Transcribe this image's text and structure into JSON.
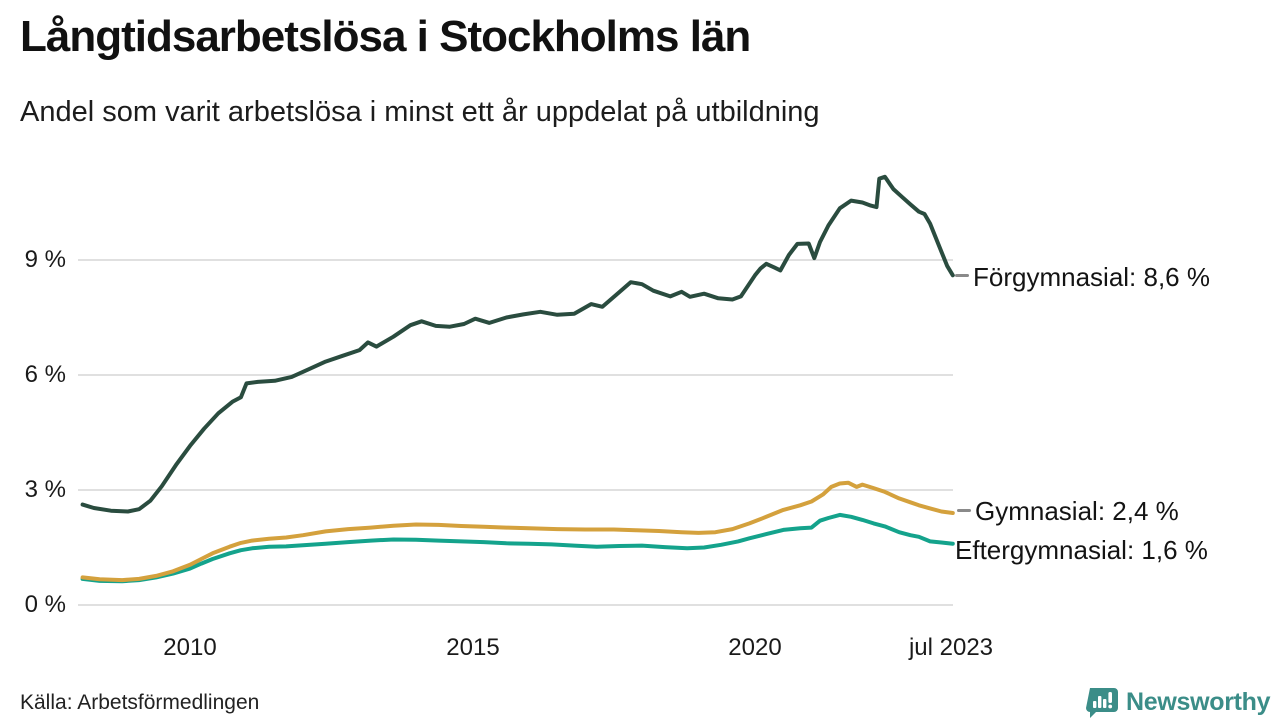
{
  "title": "Långtidsarbetslösa i Stockholms län",
  "subtitle": "Andel som varit arbetslösa i minst ett år uppdelat på utbildning",
  "source": "Källa: Arbetsförmedlingen",
  "brand": {
    "name": "Newsworthy",
    "color": "#3b8d88"
  },
  "colors": {
    "grid": "#e0e0e0",
    "text": "#151515"
  },
  "chart_data": {
    "type": "line",
    "title": "Långtidsarbetslösa i Stockholms län",
    "subtitle": "Andel som varit arbetslösa i minst ett år uppdelat på utbildning",
    "unit": "%",
    "x_axis": {
      "range_years": [
        2008.1,
        2023.5
      ],
      "ticks": [
        2010,
        2015,
        2020,
        2023.5
      ],
      "tick_labels": [
        "2010",
        "2015",
        "2020",
        "jul 2023"
      ]
    },
    "y_axis": {
      "range": [
        0,
        11.8
      ],
      "ticks": [
        0,
        3,
        6,
        9
      ],
      "tick_labels": [
        "0 %",
        "3 %",
        "6 %",
        "9 %"
      ],
      "grid": true
    },
    "legend_position": "right-end-labels",
    "series": [
      {
        "name": "Eftergymnasial",
        "color": "#14a38c",
        "end_value": 1.6,
        "end_label": "Eftergymnasial: 1,6 %",
        "points": [
          [
            2008.1,
            0.68
          ],
          [
            2008.4,
            0.63
          ],
          [
            2008.8,
            0.62
          ],
          [
            2009.1,
            0.65
          ],
          [
            2009.4,
            0.72
          ],
          [
            2009.7,
            0.82
          ],
          [
            2010.0,
            0.95
          ],
          [
            2010.2,
            1.08
          ],
          [
            2010.4,
            1.2
          ],
          [
            2010.7,
            1.35
          ],
          [
            2010.9,
            1.43
          ],
          [
            2011.1,
            1.48
          ],
          [
            2011.4,
            1.52
          ],
          [
            2011.7,
            1.53
          ],
          [
            2012.0,
            1.56
          ],
          [
            2012.4,
            1.6
          ],
          [
            2012.8,
            1.64
          ],
          [
            2013.2,
            1.68
          ],
          [
            2013.6,
            1.71
          ],
          [
            2014.0,
            1.7
          ],
          [
            2014.4,
            1.68
          ],
          [
            2014.8,
            1.66
          ],
          [
            2015.2,
            1.64
          ],
          [
            2015.6,
            1.61
          ],
          [
            2016.0,
            1.6
          ],
          [
            2016.4,
            1.58
          ],
          [
            2016.8,
            1.55
          ],
          [
            2017.2,
            1.52
          ],
          [
            2017.6,
            1.54
          ],
          [
            2018.0,
            1.55
          ],
          [
            2018.4,
            1.51
          ],
          [
            2018.8,
            1.48
          ],
          [
            2019.1,
            1.5
          ],
          [
            2019.4,
            1.57
          ],
          [
            2019.7,
            1.66
          ],
          [
            2019.9,
            1.74
          ],
          [
            2020.2,
            1.85
          ],
          [
            2020.5,
            1.96
          ],
          [
            2020.8,
            2.0
          ],
          [
            2021.0,
            2.02
          ],
          [
            2021.15,
            2.2
          ],
          [
            2021.3,
            2.27
          ],
          [
            2021.5,
            2.35
          ],
          [
            2021.7,
            2.3
          ],
          [
            2021.9,
            2.22
          ],
          [
            2022.1,
            2.13
          ],
          [
            2022.3,
            2.05
          ],
          [
            2022.55,
            1.9
          ],
          [
            2022.75,
            1.82
          ],
          [
            2022.9,
            1.78
          ],
          [
            2023.1,
            1.66
          ],
          [
            2023.3,
            1.63
          ],
          [
            2023.5,
            1.6
          ]
        ]
      },
      {
        "name": "Gymnasial",
        "color": "#d4a13d",
        "end_value": 2.4,
        "end_label": "Gymnasial: 2,4 %",
        "points": [
          [
            2008.1,
            0.72
          ],
          [
            2008.4,
            0.67
          ],
          [
            2008.8,
            0.65
          ],
          [
            2009.1,
            0.68
          ],
          [
            2009.4,
            0.76
          ],
          [
            2009.7,
            0.88
          ],
          [
            2010.0,
            1.05
          ],
          [
            2010.2,
            1.2
          ],
          [
            2010.4,
            1.35
          ],
          [
            2010.7,
            1.52
          ],
          [
            2010.9,
            1.62
          ],
          [
            2011.1,
            1.68
          ],
          [
            2011.4,
            1.73
          ],
          [
            2011.7,
            1.76
          ],
          [
            2012.0,
            1.82
          ],
          [
            2012.4,
            1.92
          ],
          [
            2012.8,
            1.98
          ],
          [
            2013.2,
            2.02
          ],
          [
            2013.6,
            2.07
          ],
          [
            2014.0,
            2.1
          ],
          [
            2014.4,
            2.09
          ],
          [
            2014.8,
            2.06
          ],
          [
            2015.2,
            2.04
          ],
          [
            2015.6,
            2.02
          ],
          [
            2016.0,
            2.0
          ],
          [
            2016.5,
            1.98
          ],
          [
            2017.0,
            1.97
          ],
          [
            2017.5,
            1.97
          ],
          [
            2017.9,
            1.95
          ],
          [
            2018.3,
            1.93
          ],
          [
            2018.7,
            1.9
          ],
          [
            2019.0,
            1.88
          ],
          [
            2019.3,
            1.9
          ],
          [
            2019.6,
            1.98
          ],
          [
            2019.9,
            2.13
          ],
          [
            2020.2,
            2.3
          ],
          [
            2020.5,
            2.48
          ],
          [
            2020.8,
            2.6
          ],
          [
            2021.0,
            2.7
          ],
          [
            2021.2,
            2.88
          ],
          [
            2021.35,
            3.08
          ],
          [
            2021.5,
            3.17
          ],
          [
            2021.65,
            3.19
          ],
          [
            2021.8,
            3.08
          ],
          [
            2021.9,
            3.14
          ],
          [
            2022.1,
            3.05
          ],
          [
            2022.3,
            2.95
          ],
          [
            2022.55,
            2.78
          ],
          [
            2022.75,
            2.68
          ],
          [
            2022.9,
            2.6
          ],
          [
            2023.1,
            2.52
          ],
          [
            2023.3,
            2.44
          ],
          [
            2023.5,
            2.4
          ]
        ]
      },
      {
        "name": "Förgymnasial",
        "color": "#2a4c3f",
        "end_value": 8.6,
        "end_label": "Förgymnasial: 8,6 %",
        "points": [
          [
            2008.1,
            2.62
          ],
          [
            2008.3,
            2.53
          ],
          [
            2008.6,
            2.46
          ],
          [
            2008.9,
            2.44
          ],
          [
            2009.1,
            2.5
          ],
          [
            2009.3,
            2.72
          ],
          [
            2009.5,
            3.1
          ],
          [
            2009.75,
            3.65
          ],
          [
            2010.0,
            4.15
          ],
          [
            2010.25,
            4.6
          ],
          [
            2010.5,
            5.0
          ],
          [
            2010.75,
            5.3
          ],
          [
            2010.9,
            5.42
          ],
          [
            2011.0,
            5.78
          ],
          [
            2011.2,
            5.82
          ],
          [
            2011.5,
            5.85
          ],
          [
            2011.8,
            5.95
          ],
          [
            2012.1,
            6.15
          ],
          [
            2012.4,
            6.35
          ],
          [
            2012.7,
            6.5
          ],
          [
            2013.0,
            6.65
          ],
          [
            2013.15,
            6.85
          ],
          [
            2013.3,
            6.74
          ],
          [
            2013.6,
            7.0
          ],
          [
            2013.9,
            7.3
          ],
          [
            2014.1,
            7.4
          ],
          [
            2014.35,
            7.28
          ],
          [
            2014.6,
            7.26
          ],
          [
            2014.85,
            7.33
          ],
          [
            2015.05,
            7.47
          ],
          [
            2015.3,
            7.36
          ],
          [
            2015.6,
            7.5
          ],
          [
            2015.9,
            7.58
          ],
          [
            2016.2,
            7.65
          ],
          [
            2016.5,
            7.57
          ],
          [
            2016.8,
            7.6
          ],
          [
            2017.1,
            7.85
          ],
          [
            2017.3,
            7.78
          ],
          [
            2017.55,
            8.1
          ],
          [
            2017.8,
            8.42
          ],
          [
            2018.0,
            8.37
          ],
          [
            2018.2,
            8.2
          ],
          [
            2018.5,
            8.05
          ],
          [
            2018.7,
            8.17
          ],
          [
            2018.85,
            8.04
          ],
          [
            2019.1,
            8.12
          ],
          [
            2019.35,
            8.0
          ],
          [
            2019.6,
            7.97
          ],
          [
            2019.75,
            8.05
          ],
          [
            2020.0,
            8.6
          ],
          [
            2020.1,
            8.78
          ],
          [
            2020.2,
            8.9
          ],
          [
            2020.35,
            8.8
          ],
          [
            2020.45,
            8.73
          ],
          [
            2020.6,
            9.13
          ],
          [
            2020.75,
            9.42
          ],
          [
            2020.95,
            9.43
          ],
          [
            2021.05,
            9.05
          ],
          [
            2021.15,
            9.47
          ],
          [
            2021.3,
            9.9
          ],
          [
            2021.5,
            10.35
          ],
          [
            2021.7,
            10.55
          ],
          [
            2021.9,
            10.5
          ],
          [
            2022.05,
            10.42
          ],
          [
            2022.15,
            10.38
          ],
          [
            2022.2,
            11.12
          ],
          [
            2022.3,
            11.17
          ],
          [
            2022.45,
            10.85
          ],
          [
            2022.6,
            10.65
          ],
          [
            2022.75,
            10.45
          ],
          [
            2022.9,
            10.26
          ],
          [
            2023.0,
            10.2
          ],
          [
            2023.1,
            9.95
          ],
          [
            2023.25,
            9.4
          ],
          [
            2023.4,
            8.85
          ],
          [
            2023.5,
            8.6
          ]
        ]
      }
    ]
  }
}
